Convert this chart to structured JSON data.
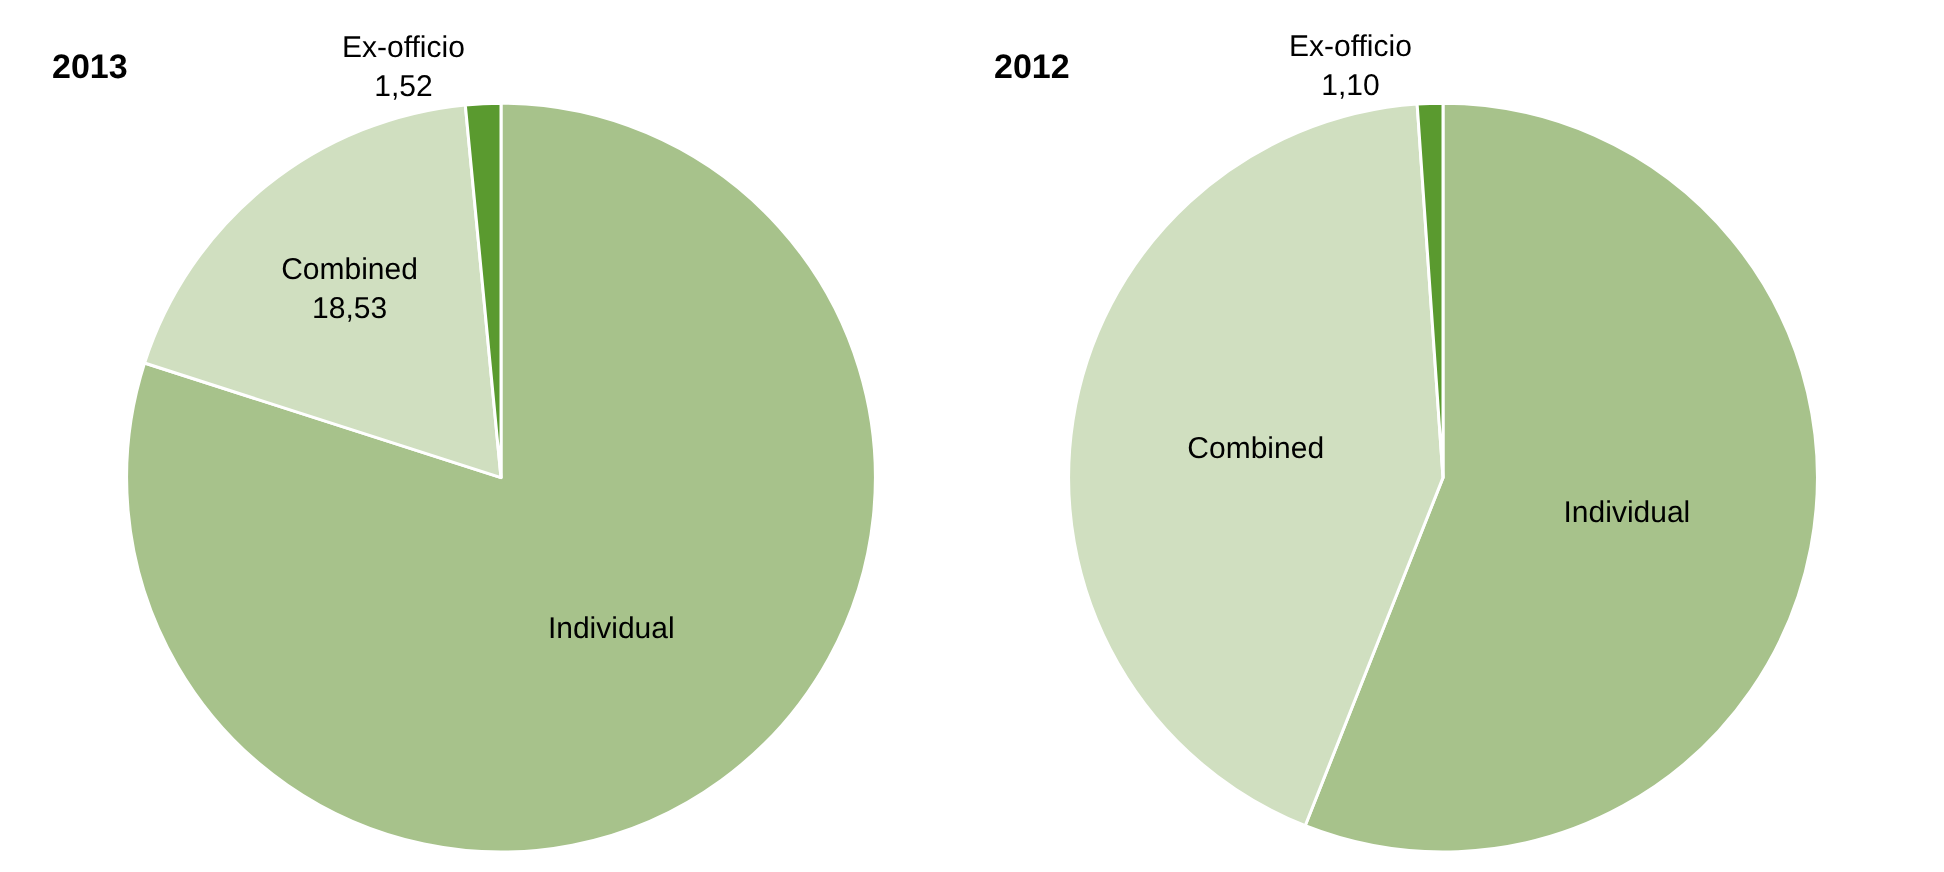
{
  "chart_data": [
    {
      "type": "pie",
      "title": "2013",
      "categories": [
        "Individual",
        "Combined",
        "Ex-officio"
      ],
      "values": [
        79.95,
        18.53,
        1.52
      ],
      "colors": [
        "#a7c28b",
        "#d0dfc0",
        "#5a9a2f"
      ],
      "value_labels": [
        null,
        "18,53",
        "1,52"
      ]
    },
    {
      "type": "pie",
      "title": "2012",
      "categories": [
        "Individual",
        "Combined",
        "Ex-officio"
      ],
      "values": [
        56.0,
        42.9,
        1.1
      ],
      "colors": [
        "#a7c28b",
        "#d0dfc0",
        "#5a9a2f"
      ],
      "value_labels": [
        null,
        null,
        "1,10"
      ]
    }
  ]
}
